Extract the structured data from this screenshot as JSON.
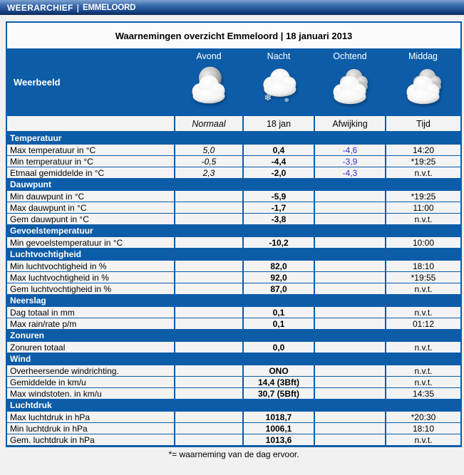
{
  "header": {
    "brand": "WEERARCHIEF",
    "separator": "|",
    "location": "EMMELOORD"
  },
  "title": "Waarnemingen overzicht Emmeloord | 18 januari 2013",
  "table": {
    "weerbeeld_label": "Weerbeeld",
    "periods": [
      {
        "label": "Avond",
        "icon": "moon-cloud-icon"
      },
      {
        "label": "Nacht",
        "icon": "cloud-snow-icon"
      },
      {
        "label": "Ochtend",
        "icon": "clouds-icon"
      },
      {
        "label": "Middag",
        "icon": "clouds-icon"
      }
    ],
    "columns": [
      "Normaal",
      "18 jan",
      "Afwijking",
      "Tijd"
    ],
    "sections": [
      {
        "name": "Temperatuur",
        "rows": [
          {
            "label": "Max temperatuur in °C",
            "normaal": "5,0",
            "value": "0,4",
            "afwijking": "-4,6",
            "tijd": "14:20"
          },
          {
            "label": "Min temperatuur in °C",
            "normaal": "-0,5",
            "value": "-4,4",
            "afwijking": "-3,9",
            "tijd": "*19:25"
          },
          {
            "label": "Etmaal gemiddelde in °C",
            "normaal": "2,3",
            "value": "-2,0",
            "afwijking": "-4,3",
            "tijd": "n.v.t."
          }
        ]
      },
      {
        "name": "Dauwpunt",
        "rows": [
          {
            "label": "Min dauwpunt in °C",
            "normaal": "",
            "value": "-5,9",
            "afwijking": "",
            "tijd": "*19:25"
          },
          {
            "label": "Max dauwpunt in °C",
            "normaal": "",
            "value": "-1,7",
            "afwijking": "",
            "tijd": "11:00"
          },
          {
            "label": "Gem dauwpunt in °C",
            "normaal": "",
            "value": "-3,8",
            "afwijking": "",
            "tijd": "n.v.t."
          }
        ]
      },
      {
        "name": "Gevoelstemperatuur",
        "rows": [
          {
            "label": "Min gevoelstemperatuur in °C",
            "normaal": "",
            "value": "-10,2",
            "afwijking": "",
            "tijd": "10:00"
          }
        ]
      },
      {
        "name": "Luchtvochtigheid",
        "rows": [
          {
            "label": "Min luchtvochtigheid in %",
            "normaal": "",
            "value": "82,0",
            "afwijking": "",
            "tijd": "18:10"
          },
          {
            "label": "Max luchtvochtigheid in %",
            "normaal": "",
            "value": "92,0",
            "afwijking": "",
            "tijd": "*19:55"
          },
          {
            "label": "Gem luchtvochtigheid in %",
            "normaal": "",
            "value": "87,0",
            "afwijking": "",
            "tijd": "n.v.t."
          }
        ]
      },
      {
        "name": "Neerslag",
        "rows": [
          {
            "label": "Dag totaal in mm",
            "normaal": "",
            "value": "0,1",
            "afwijking": "",
            "tijd": "n.v.t."
          },
          {
            "label": "Max rain/rate p/m",
            "normaal": "",
            "value": "0,1",
            "afwijking": "",
            "tijd": "01:12"
          }
        ]
      },
      {
        "name": "Zonuren",
        "rows": [
          {
            "label": "Zonuren totaal",
            "normaal": "",
            "value": "0,0",
            "afwijking": "",
            "tijd": "n.v.t."
          }
        ]
      },
      {
        "name": "Wind",
        "rows": [
          {
            "label": "Overheersende windrichting.",
            "normaal": "",
            "value": "ONO",
            "afwijking": "",
            "tijd": "n.v.t."
          },
          {
            "label": "Gemiddelde in km/u",
            "normaal": "",
            "value": "14,4 (3Bft)",
            "afwijking": "",
            "tijd": "n.v.t."
          },
          {
            "label": "Max windstoten. in km/u",
            "normaal": "",
            "value": "30,7 (5Bft)",
            "afwijking": "",
            "tijd": "14:35"
          }
        ]
      },
      {
        "name": "Luchtdruk",
        "rows": [
          {
            "label": "Max luchtdruk in hPa",
            "normaal": "",
            "value": "1018,7",
            "afwijking": "",
            "tijd": "*20:30"
          },
          {
            "label": "Min luchtdruk in hPa",
            "normaal": "",
            "value": "1006,1",
            "afwijking": "",
            "tijd": "18:10"
          },
          {
            "label": "Gem. luchtdruk in hPa",
            "normaal": "",
            "value": "1013,6",
            "afwijking": "",
            "tijd": "n.v.t."
          }
        ]
      }
    ]
  },
  "footnote": "*= waarneming van de dag ervoor.",
  "colors": {
    "accent_blue": "#0d5ca8",
    "afwijking_text": "#3333cc",
    "topbar_gradient_top": "#7fa3d2",
    "topbar_gradient_bottom": "#0b2a5a",
    "row_background": "#f3f3f3",
    "page_background": "#f1f1f1"
  }
}
